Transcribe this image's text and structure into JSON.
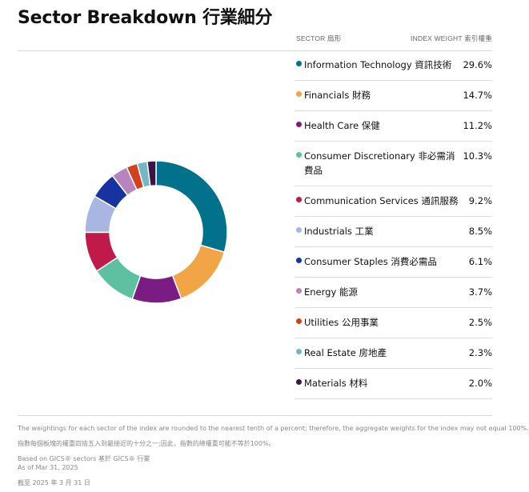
{
  "header": {
    "title": "Sector Breakdown 行業細分",
    "col_sector": "SECTOR 扇形",
    "col_weight": "INDEX WEIGHT 索引權重"
  },
  "chart_data": {
    "type": "pie",
    "donut": true,
    "title": "Sector Breakdown 行業細分",
    "categories": [
      "Information Technology 資訊技術",
      "Financials 財務",
      "Health Care 保健",
      "Consumer Discretionary 非必需消費品",
      "Communication Services 通訊服務",
      "Industrials 工業",
      "Consumer Staples 消費必需品",
      "Energy 能源",
      "Utilities 公用事業",
      "Real Estate 房地產",
      "Materials 材料"
    ],
    "values": [
      29.6,
      14.7,
      11.2,
      10.3,
      9.2,
      8.5,
      6.1,
      3.7,
      2.5,
      2.3,
      2.0
    ],
    "labels": [
      "29.6%",
      "14.7%",
      "11.2%",
      "10.3%",
      "9.2%",
      "8.5%",
      "6.1%",
      "3.7%",
      "2.5%",
      "2.3%",
      "2.0%"
    ],
    "colors": [
      "#02718b",
      "#f2a546",
      "#7a1c83",
      "#5cc0a1",
      "#c01a4b",
      "#aab6e2",
      "#17339f",
      "#b784bd",
      "#d0411c",
      "#74b7c6",
      "#3d1446"
    ],
    "legend_position": "right"
  },
  "footer": {
    "note_en": "The weightings for each sector of the index are rounded to the nearest tenth of a percent; therefore, the aggregate weights for the index may not equal 100%.",
    "note_zh": "指數每個板塊的權重四捨五入到最接近的十分之一;因此，指數的總權重可能不等於100%。",
    "based_on": "Based on GICS® sectors 基於 GICS® 行業",
    "as_of": "As of Mar 31, 2025",
    "as_of_zh": "截至 2025 年 3 月 31 日"
  }
}
